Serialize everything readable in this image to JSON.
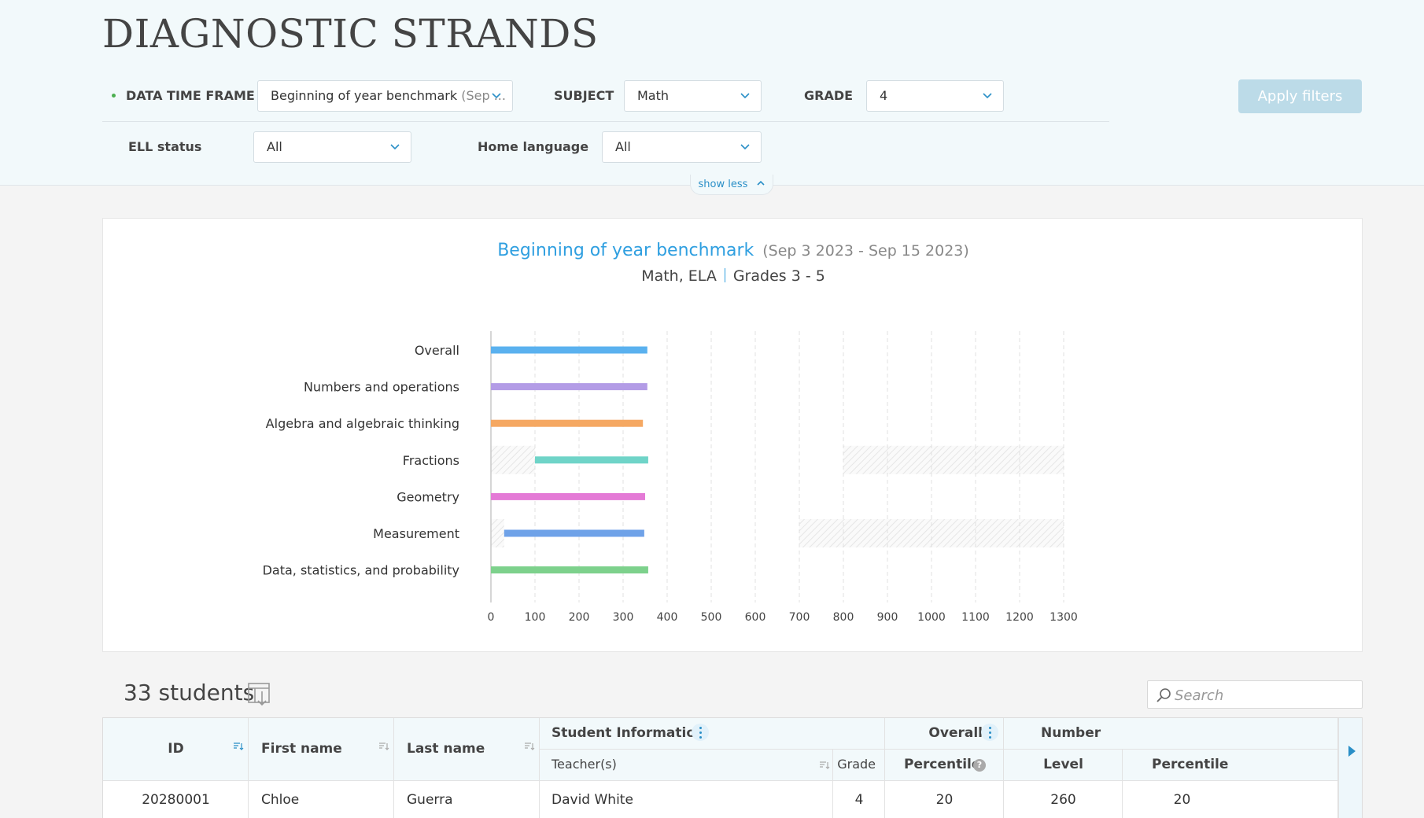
{
  "page": {
    "title": "DIAGNOSTIC STRANDS"
  },
  "filters": {
    "time_frame_label": "DATA TIME FRAME",
    "time_frame_value": "Beginning of year benchmark",
    "time_frame_suffix": "(Sep ...",
    "subject_label": "SUBJECT",
    "subject_value": "Math",
    "grade_label": "GRADE",
    "grade_value": "4",
    "ell_label": "ELL status",
    "ell_value": "All",
    "home_language_label": "Home language",
    "home_language_value": "All",
    "apply_label": "Apply filters",
    "show_less_label": "show less"
  },
  "chart_header": {
    "title": "Beginning of year benchmark",
    "date_range": "(Sep 3 2023 - Sep 15 2023)",
    "subjects": "Math, ELA",
    "grades": "Grades 3 - 5"
  },
  "chart_data": {
    "type": "bar",
    "orientation": "horizontal",
    "title": "Beginning of year benchmark",
    "subtitle": "(Sep 3 2023 - Sep 15 2023)",
    "categories": [
      "Overall",
      "Numbers and operations",
      "Algebra and algebraic thinking",
      "Fractions",
      "Geometry",
      "Measurement",
      "Data, statistics, and probability"
    ],
    "ranges": [
      [
        0,
        355
      ],
      [
        0,
        355
      ],
      [
        0,
        345
      ],
      [
        100,
        357
      ],
      [
        0,
        350
      ],
      [
        30,
        348
      ],
      [
        0,
        357
      ]
    ],
    "colors": [
      "#5ab1ef",
      "#b39ce6",
      "#f5a862",
      "#6fd4c8",
      "#e47ad6",
      "#6fa2e8",
      "#7dd18c"
    ],
    "hatched": [
      [],
      [],
      [],
      [
        [
          0,
          100
        ],
        [
          800,
          1300
        ]
      ],
      [],
      [
        [
          0,
          30
        ],
        [
          700,
          1300
        ]
      ],
      []
    ],
    "xlim": [
      0,
      1300
    ],
    "xticks": [
      "0",
      "100",
      "200",
      "300",
      "400",
      "500",
      "600",
      "700",
      "800",
      "900",
      "1000",
      "1100",
      "1200",
      "1300"
    ],
    "grid": "vertical dashed"
  },
  "students": {
    "count_label": "33 students",
    "search_placeholder": "Search"
  },
  "table": {
    "headers": {
      "id": "ID",
      "first_name": "First name",
      "last_name": "Last name",
      "student_info": "Student Information",
      "teachers": "Teacher(s)",
      "grade": "Grade",
      "overall": "Overall",
      "percentile": "Percentile",
      "level": "Level",
      "number": "Number",
      "number_percentile": "Percentile"
    },
    "rows": [
      {
        "id": "20280001",
        "first_name": "Chloe",
        "last_name": "Guerra",
        "teachers": "David White",
        "grade": "4",
        "percentile": "20",
        "level": "260",
        "number_percentile": "20"
      }
    ]
  }
}
